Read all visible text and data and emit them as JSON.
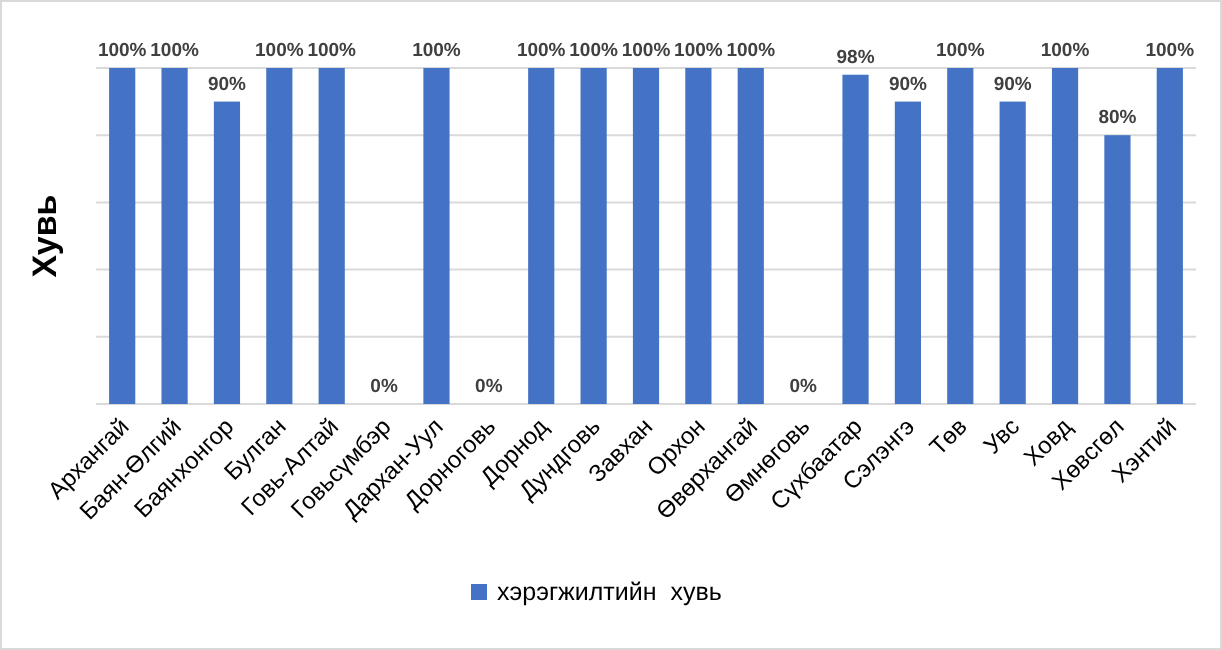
{
  "chart_data": {
    "type": "bar",
    "ylabel": "Хувь",
    "categories": [
      "Архангай",
      "Баян-Өлгий",
      "Баянхонгор",
      "Булган",
      "Говь-Алтай",
      "Говьсүмбэр",
      "Дархан-Уул",
      "Дорноговь",
      "Дорнод",
      "Дундговь",
      "Завхан",
      "Орхон",
      "Өвөрхангай",
      "Өмнөговь",
      "Сүхбаатар",
      "Сэлэнгэ",
      "Төв",
      "Увс",
      "Ховд",
      "Хөвсгөл",
      "Хэнтий"
    ],
    "series": [
      {
        "name": "хэрэгжилтийн  хувь",
        "color": "#4472c4",
        "values": [
          100,
          100,
          90,
          100,
          100,
          0,
          100,
          0,
          100,
          100,
          100,
          100,
          100,
          0,
          98,
          90,
          100,
          90,
          100,
          80,
          100
        ],
        "value_labels": [
          "100%",
          "100%",
          "90%",
          "100%",
          "100%",
          "0%",
          "100%",
          "0%",
          "100%",
          "100%",
          "100%",
          "100%",
          "100%",
          "0%",
          "98%",
          "90%",
          "100%",
          "90%",
          "100%",
          "80%",
          "100%"
        ]
      }
    ],
    "ylim": [
      0,
      100
    ],
    "yticks": [
      {
        "value": 0,
        "label": null
      },
      {
        "value": 20,
        "label": null
      },
      {
        "value": 40,
        "label": null
      },
      {
        "value": 60,
        "label": null
      },
      {
        "value": 80,
        "label": null
      },
      {
        "value": 100,
        "label": null
      }
    ],
    "grid": "y",
    "legend": "bottom"
  }
}
